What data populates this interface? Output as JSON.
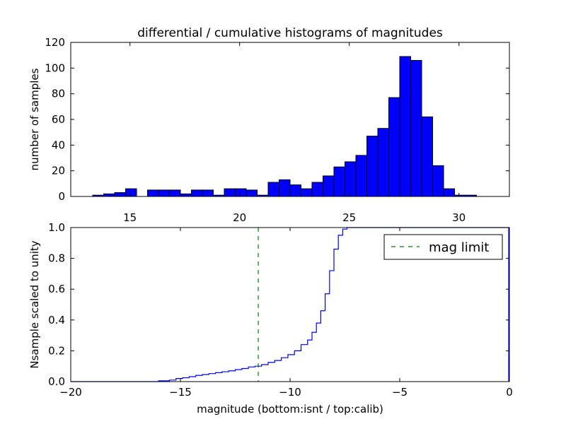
{
  "chart_data": [
    {
      "type": "bar",
      "title": "differential / cumulative histograms of magnitudes",
      "ylabel": "number of samples",
      "xlim": [
        12.3,
        32.3
      ],
      "ylim": [
        0,
        120
      ],
      "xticks": [
        15,
        20,
        25,
        30
      ],
      "yticks": [
        0,
        20,
        40,
        60,
        80,
        100,
        120
      ],
      "bin_width": 0.5,
      "bin_starts": [
        13.3,
        13.8,
        14.3,
        14.8,
        15.3,
        15.8,
        16.3,
        16.8,
        17.3,
        17.8,
        18.3,
        18.8,
        19.3,
        19.8,
        20.3,
        20.8,
        21.3,
        21.8,
        22.3,
        22.8,
        23.3,
        23.8,
        24.3,
        24.8,
        25.3,
        25.8,
        26.3,
        26.8,
        27.3,
        27.8,
        28.3,
        28.8,
        29.3,
        29.8,
        30.3
      ],
      "values": [
        1,
        2,
        3,
        6,
        0,
        5,
        5,
        5,
        2,
        5,
        5,
        1,
        6,
        6,
        5,
        1,
        11,
        13,
        9,
        6,
        11,
        16,
        23,
        27,
        32,
        47,
        53,
        77,
        109,
        106,
        62,
        24,
        6,
        1,
        1
      ],
      "bar_color": "#0000ff"
    },
    {
      "type": "line",
      "ylabel": "Nsample scaled to unity",
      "xlabel": "magnitude (bottom:isnt / top:calib)",
      "xlim": [
        -20,
        0
      ],
      "ylim": [
        0,
        1.0
      ],
      "xticks": [
        -20,
        -15,
        -10,
        -5,
        0
      ],
      "yticks": [
        0.0,
        0.2,
        0.4,
        0.6,
        0.8,
        1.0
      ],
      "step_starts": [
        -16.5,
        -16.0,
        -15.5,
        -15.2,
        -14.9,
        -14.6,
        -14.3,
        -14.0,
        -13.7,
        -13.4,
        -13.1,
        -12.8,
        -12.5,
        -12.2,
        -11.9,
        -11.6,
        -11.3,
        -11.0,
        -10.7,
        -10.4,
        -10.1,
        -9.8,
        -9.5,
        -9.2,
        -9.0,
        -8.8,
        -8.6,
        -8.4,
        -8.2,
        -8.0,
        -7.8,
        -7.6
      ],
      "cumulative": [
        0.0,
        0.005,
        0.01,
        0.02,
        0.025,
        0.032,
        0.04,
        0.046,
        0.052,
        0.058,
        0.064,
        0.07,
        0.078,
        0.085,
        0.095,
        0.1,
        0.11,
        0.125,
        0.137,
        0.155,
        0.175,
        0.2,
        0.24,
        0.27,
        0.32,
        0.38,
        0.46,
        0.57,
        0.72,
        0.86,
        0.95,
        0.99
      ],
      "line_color": "#0000ff",
      "reference_lines": [
        {
          "name": "mag limit",
          "x": -11.45,
          "color": "#008000",
          "style": "dashed"
        }
      ],
      "legend": {
        "position": "top-right",
        "label": "mag limit"
      }
    }
  ]
}
